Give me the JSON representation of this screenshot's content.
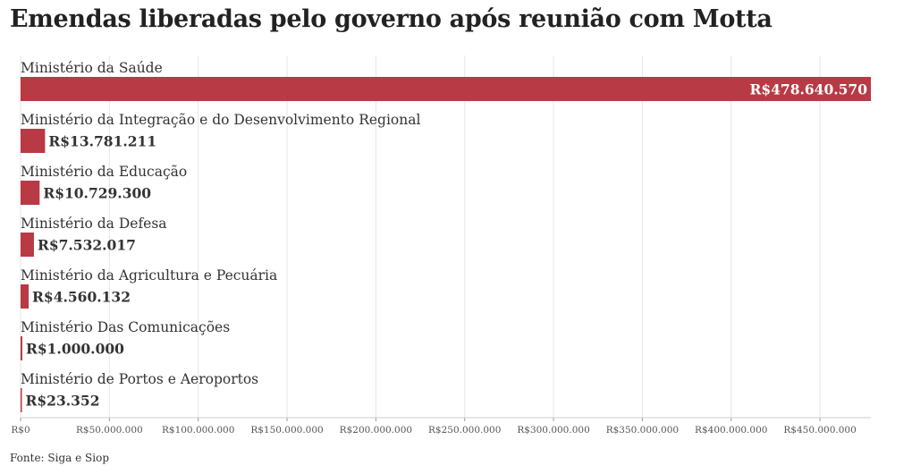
{
  "title": "Emendas liberadas pelo governo após reunião com Motta",
  "source": "Fonte: Siga e Siop",
  "colors": {
    "bar": "#b83a44",
    "grid": "#e6e6e6",
    "axis": "#999999"
  },
  "chart_data": {
    "type": "bar",
    "orientation": "horizontal",
    "title": "Emendas liberadas pelo governo após reunião com Motta",
    "xlabel": "",
    "ylabel": "",
    "xlim": [
      0,
      478640570
    ],
    "grid": true,
    "categories": [
      "Ministério da Saúde",
      "Ministério da Integração e do Desenvolvimento Regional",
      "Ministério da Educação",
      "Ministério da Defesa",
      "Ministério da Agricultura e Pecuária",
      "Ministério Das Comunicações",
      "Ministério de Portos e Aeroportos"
    ],
    "values": [
      478640570,
      13781211,
      10729300,
      7532017,
      4560132,
      1000000,
      23352
    ],
    "value_labels": [
      "R$478.640.570",
      "R$13.781.211",
      "R$10.729.300",
      "R$7.532.017",
      "R$4.560.132",
      "R$1.000.000",
      "R$23.352"
    ],
    "ticks": [
      0,
      50000000,
      100000000,
      150000000,
      200000000,
      250000000,
      300000000,
      350000000,
      400000000,
      450000000
    ],
    "tick_labels": [
      "R$0",
      "R$50.000.000",
      "R$100.000.000",
      "R$150.000.000",
      "R$200.000.000",
      "R$250.000.000",
      "R$300.000.000",
      "R$350.000.000",
      "R$400.000.000",
      "R$450.000.000"
    ]
  }
}
